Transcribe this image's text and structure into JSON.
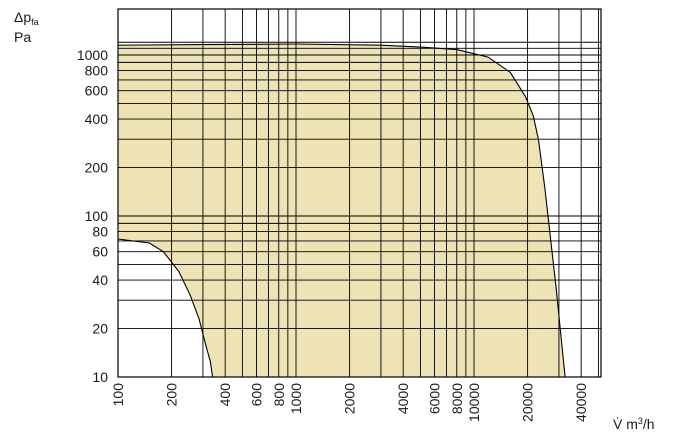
{
  "chart_data": {
    "type": "area",
    "title": "",
    "ylabel": {
      "symbol": "Δp",
      "subscript": "fa",
      "unit": "Pa"
    },
    "xlabel": {
      "symbol": "V̇ m",
      "superscript": "3",
      "unit": "/h"
    },
    "x_scale": "log",
    "y_scale": "log",
    "xlim": [
      100,
      50000
    ],
    "ylim": [
      10,
      1400
    ],
    "grid": true,
    "fill_color": "#ede3b5",
    "line_color": "#000000",
    "x_ticks": [
      {
        "value": 100,
        "label": "100"
      },
      {
        "value": 200,
        "label": "200"
      },
      {
        "value": 400,
        "label": "400"
      },
      {
        "value": 600,
        "label": "600"
      },
      {
        "value": 800,
        "label": "800"
      },
      {
        "value": 1000,
        "label": "1000"
      },
      {
        "value": 2000,
        "label": "2000"
      },
      {
        "value": 4000,
        "label": "4000"
      },
      {
        "value": 6000,
        "label": "6000"
      },
      {
        "value": 8000,
        "label": "8000"
      },
      {
        "value": 10000,
        "label": "10000"
      },
      {
        "value": 20000,
        "label": "20000"
      },
      {
        "value": 40000,
        "label": "40000"
      }
    ],
    "x_grid": [
      100,
      200,
      300,
      400,
      500,
      600,
      700,
      800,
      900,
      1000,
      2000,
      3000,
      4000,
      5000,
      6000,
      7000,
      8000,
      9000,
      10000,
      20000,
      30000,
      40000,
      50000
    ],
    "y_ticks": [
      {
        "value": 10,
        "label": "10"
      },
      {
        "value": 20,
        "label": "20"
      },
      {
        "value": 40,
        "label": "40"
      },
      {
        "value": 60,
        "label": "60"
      },
      {
        "value": 80,
        "label": "80"
      },
      {
        "value": 100,
        "label": "100"
      },
      {
        "value": 200,
        "label": "200"
      },
      {
        "value": 400,
        "label": "400"
      },
      {
        "value": 600,
        "label": "600"
      },
      {
        "value": 800,
        "label": "800"
      },
      {
        "value": 1000,
        "label": "1000"
      }
    ],
    "y_grid": [
      10,
      20,
      30,
      40,
      50,
      60,
      70,
      80,
      90,
      100,
      200,
      300,
      400,
      500,
      600,
      700,
      800,
      900,
      1000,
      1100,
      1200
    ],
    "upper_boundary": [
      [
        100,
        1150
      ],
      [
        300,
        1160
      ],
      [
        1000,
        1170
      ],
      [
        3000,
        1150
      ],
      [
        5000,
        1120
      ],
      [
        8000,
        1080
      ],
      [
        12000,
        970
      ],
      [
        16000,
        780
      ],
      [
        19500,
        550
      ],
      [
        21500,
        420
      ],
      [
        23000,
        300
      ],
      [
        25000,
        150
      ],
      [
        27000,
        70
      ],
      [
        29000,
        35
      ],
      [
        30500,
        20
      ],
      [
        32500,
        10
      ]
    ],
    "lower_boundary": [
      [
        100,
        72
      ],
      [
        150,
        68
      ],
      [
        180,
        60
      ],
      [
        220,
        45
      ],
      [
        255,
        32
      ],
      [
        285,
        23
      ],
      [
        310,
        16
      ],
      [
        330,
        12.5
      ],
      [
        340,
        10
      ]
    ]
  }
}
